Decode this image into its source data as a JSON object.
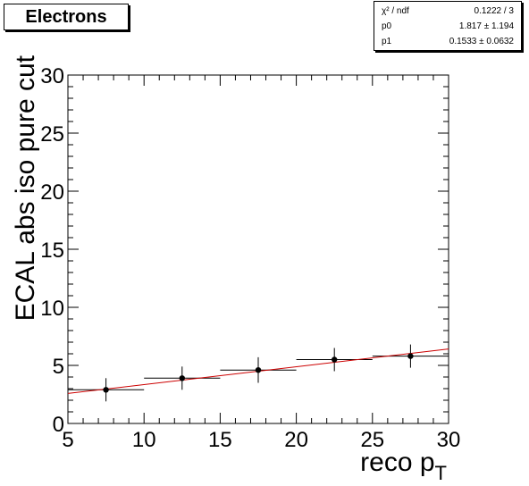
{
  "chart_data": {
    "type": "scatter",
    "title": "Electrons",
    "xlabel": "reco p",
    "xlabel_sub": "T",
    "ylabel": "ECAL abs iso pure cut",
    "xlim": [
      5,
      30
    ],
    "ylim": [
      0,
      30
    ],
    "x_ticks": [
      "5",
      "10",
      "15",
      "20",
      "25",
      "30"
    ],
    "y_ticks": [
      "0",
      "5",
      "10",
      "15",
      "20",
      "25",
      "30"
    ],
    "grid": false,
    "points": [
      {
        "x": 7.5,
        "y": 2.9,
        "xerr": 2.5,
        "yerr": 1.0
      },
      {
        "x": 12.5,
        "y": 3.9,
        "xerr": 2.5,
        "yerr": 1.0
      },
      {
        "x": 17.5,
        "y": 4.6,
        "xerr": 2.5,
        "yerr": 1.1
      },
      {
        "x": 22.5,
        "y": 5.5,
        "xerr": 2.5,
        "yerr": 1.0
      },
      {
        "x": 27.5,
        "y": 5.8,
        "xerr": 2.5,
        "yerr": 1.0
      }
    ],
    "fit": {
      "type": "linear",
      "p0": 1.817,
      "p1": 0.1533,
      "color": "#cc0000"
    },
    "stats": [
      {
        "key": "χ² / ndf",
        "value": "0.1222 / 3"
      },
      {
        "key": "p0",
        "value": "1.817 ± 1.194"
      },
      {
        "key": "p1",
        "value": "0.1533 ± 0.0632"
      }
    ]
  }
}
